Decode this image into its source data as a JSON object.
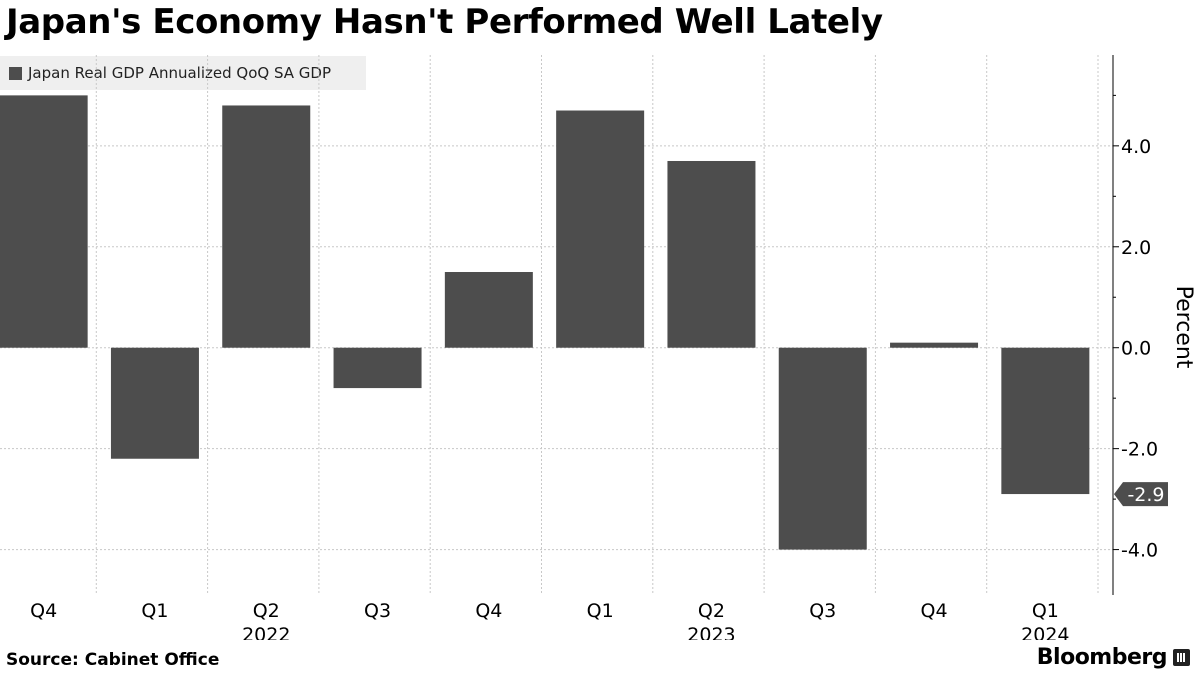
{
  "title": "Japan's Economy Hasn't Performed Well Lately",
  "legend": {
    "label": "Japan Real GDP Annualized QoQ SA GDP"
  },
  "source": "Source:  Cabinet Office",
  "brand": "Bloomberg",
  "colors": {
    "bar": "#4d4d4d",
    "grid": "#c8c8c8",
    "axis": "#000000"
  },
  "chart_data": {
    "type": "bar",
    "categories": [
      "Q4",
      "Q1",
      "Q2",
      "Q3",
      "Q4",
      "Q1",
      "Q2",
      "Q3",
      "Q4",
      "Q1"
    ],
    "year_labels": [
      {
        "label": "2022",
        "category_index": 2
      },
      {
        "label": "2023",
        "category_index": 6
      },
      {
        "label": "2024",
        "category_index": 9
      }
    ],
    "series": [
      {
        "name": "Japan Real GDP Annualized QoQ SA GDP",
        "values": [
          5.0,
          -2.2,
          4.8,
          -0.8,
          1.5,
          4.7,
          3.7,
          -4.0,
          0.1,
          -2.9
        ]
      }
    ],
    "ylabel": "Percent",
    "ylim": [
      -4.9,
      5.8
    ],
    "yticks": [
      4.0,
      2.0,
      0.0,
      -2.0,
      -4.0
    ],
    "ytick_labels": [
      "4.0",
      "2.0",
      "0.0",
      "-2.0",
      "-4.0"
    ],
    "last_value_label": "-2.9",
    "axis_side": "right",
    "grid": true
  }
}
